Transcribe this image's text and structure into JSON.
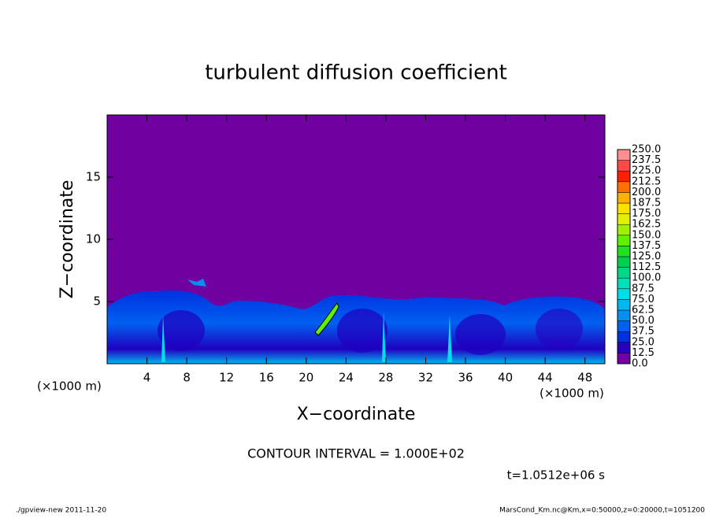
{
  "chart_data": {
    "type": "contour",
    "title": "turbulent diffusion coefficient",
    "x_label": "X−coordinate",
    "y_label": "Z−coordinate",
    "x_unit_label": "(×1000 m)",
    "y_unit_label": "(×1000 m)",
    "contour_interval": "CONTOUR INTERVAL = 1.000E+02",
    "time_label": "t=1.0512e+06 s",
    "footer_left": "./gpview-new   2011-11-20",
    "footer_right": "MarsCond_Km.nc@Km,x=0:50000,z=0:20000,t=1051200",
    "xlim": [
      0,
      50
    ],
    "ylim": [
      0,
      20
    ],
    "xticks": [
      4,
      8,
      12,
      16,
      20,
      24,
      28,
      32,
      36,
      40,
      44,
      48
    ],
    "yticks": [
      5,
      10,
      15
    ],
    "colorbar": {
      "levels": [
        {
          "value": 0,
          "label": "0.0"
        },
        {
          "value": 12.5,
          "label": "12.5"
        },
        {
          "value": 25,
          "label": "25.0"
        },
        {
          "value": 37.5,
          "label": "37.5"
        },
        {
          "value": 50,
          "label": "50.0"
        },
        {
          "value": 62.5,
          "label": "62.5"
        },
        {
          "value": 75,
          "label": "75.0"
        },
        {
          "value": 87.5,
          "label": "87.5"
        },
        {
          "value": 100,
          "label": "100.0"
        },
        {
          "value": 112.5,
          "label": "112.5"
        },
        {
          "value": 125,
          "label": "125.0"
        },
        {
          "value": 137.5,
          "label": "137.5"
        },
        {
          "value": 150,
          "label": "150.0"
        },
        {
          "value": 162.5,
          "label": "162.5"
        },
        {
          "value": 175,
          "label": "175.0"
        },
        {
          "value": 187.5,
          "label": "187.5"
        },
        {
          "value": 200,
          "label": "200.0"
        },
        {
          "value": 212.5,
          "label": "212.5"
        },
        {
          "value": 225,
          "label": "225.0"
        },
        {
          "value": 237.5,
          "label": "237.5"
        },
        {
          "value": 250,
          "label": "250.0"
        }
      ],
      "colors": [
        "#7000a0",
        "#2800c0",
        "#0030e0",
        "#0060f0",
        "#0090f0",
        "#00b8f0",
        "#00dce8",
        "#00e0b8",
        "#00d888",
        "#00d050",
        "#20e020",
        "#60f000",
        "#a0f000",
        "#e0f000",
        "#ffe000",
        "#ffb000",
        "#ff7000",
        "#ff2000",
        "#ff4848",
        "#ff9090"
      ]
    }
  }
}
